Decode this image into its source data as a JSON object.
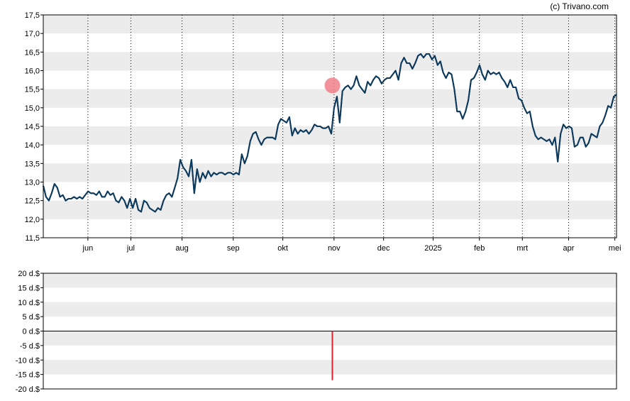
{
  "copyright": "(c) Trivano.com",
  "colors": {
    "band": "#ececec",
    "price_line": "#0d3a5c",
    "marker": "#f07f89",
    "bar": "#e0202e",
    "frame": "#000000",
    "grid": "#000000"
  },
  "chart_data": [
    {
      "type": "line",
      "title": "",
      "xlabel": "",
      "ylabel": "",
      "ylim": [
        11.5,
        17.5
      ],
      "y_ticks": [
        "11,5",
        "12,0",
        "12,5",
        "13,0",
        "13,5",
        "14,0",
        "14,5",
        "15,0",
        "15,5",
        "16,0",
        "16,5",
        "17,0",
        "17,5"
      ],
      "y_tick_values": [
        11.5,
        12.0,
        12.5,
        13.0,
        13.5,
        14.0,
        14.5,
        15.0,
        15.5,
        16.0,
        16.5,
        17.0,
        17.5
      ],
      "x_range_days": [
        0,
        347
      ],
      "x_ticks": [
        {
          "label": "jun",
          "day": 27
        },
        {
          "label": "jul",
          "day": 53
        },
        {
          "label": "aug",
          "day": 84
        },
        {
          "label": "sep",
          "day": 115
        },
        {
          "label": "okt",
          "day": 145
        },
        {
          "label": "nov",
          "day": 176
        },
        {
          "label": "dec",
          "day": 206
        },
        {
          "label": "2025",
          "day": 236
        },
        {
          "label": "feb",
          "day": 264
        },
        {
          "label": "mrt",
          "day": 290
        },
        {
          "label": "apr",
          "day": 318
        },
        {
          "label": "mei",
          "day": 346
        }
      ],
      "grid": "vertical dotted at month starts, alternating horizontal bands",
      "series": [
        {
          "points": [
            [
              0,
              12.9
            ],
            [
              1,
              12.6
            ],
            [
              2,
              12.5
            ],
            [
              3,
              12.7
            ],
            [
              4,
              12.95
            ],
            [
              5,
              12.85
            ],
            [
              6,
              12.6
            ],
            [
              7,
              12.65
            ],
            [
              8,
              12.5
            ],
            [
              9,
              12.55
            ],
            [
              10,
              12.55
            ],
            [
              11,
              12.6
            ],
            [
              12,
              12.55
            ],
            [
              13,
              12.6
            ],
            [
              14,
              12.55
            ],
            [
              15,
              12.65
            ],
            [
              16,
              12.75
            ],
            [
              17,
              12.7
            ],
            [
              18,
              12.7
            ],
            [
              19,
              12.65
            ],
            [
              20,
              12.75
            ],
            [
              21,
              12.6
            ],
            [
              22,
              12.6
            ],
            [
              23,
              12.75
            ],
            [
              24,
              12.65
            ],
            [
              25,
              12.7
            ],
            [
              26,
              12.5
            ],
            [
              27,
              12.45
            ],
            [
              28,
              12.6
            ],
            [
              29,
              12.5
            ],
            [
              30,
              12.3
            ],
            [
              31,
              12.55
            ],
            [
              32,
              12.3
            ],
            [
              33,
              12.55
            ],
            [
              34,
              12.25
            ],
            [
              35,
              12.2
            ],
            [
              36,
              12.5
            ],
            [
              37,
              12.45
            ],
            [
              38,
              12.3
            ],
            [
              39,
              12.25
            ],
            [
              40,
              12.2
            ],
            [
              41,
              12.3
            ],
            [
              42,
              12.25
            ],
            [
              43,
              12.5
            ],
            [
              44,
              12.65
            ],
            [
              45,
              12.7
            ],
            [
              46,
              12.6
            ],
            [
              47,
              12.85
            ],
            [
              48,
              13.1
            ],
            [
              49,
              13.6
            ],
            [
              50,
              13.4
            ],
            [
              51,
              13.3
            ],
            [
              52,
              13.15
            ],
            [
              53,
              13.6
            ],
            [
              54,
              12.7
            ],
            [
              55,
              13.35
            ],
            [
              56,
              13.0
            ],
            [
              57,
              13.25
            ],
            [
              58,
              13.1
            ],
            [
              59,
              13.3
            ],
            [
              60,
              13.15
            ],
            [
              61,
              13.25
            ],
            [
              62,
              13.2
            ],
            [
              63,
              13.25
            ],
            [
              64,
              13.25
            ],
            [
              65,
              13.2
            ],
            [
              66,
              13.25
            ],
            [
              67,
              13.25
            ],
            [
              68,
              13.2
            ],
            [
              69,
              13.25
            ],
            [
              70,
              13.2
            ],
            [
              71,
              13.75
            ],
            [
              72,
              13.5
            ],
            [
              73,
              13.7
            ],
            [
              74,
              14.1
            ],
            [
              75,
              14.3
            ],
            [
              76,
              14.35
            ],
            [
              77,
              14.15
            ],
            [
              78,
              14.0
            ],
            [
              79,
              14.15
            ],
            [
              80,
              14.2
            ],
            [
              81,
              14.2
            ],
            [
              82,
              14.2
            ],
            [
              83,
              14.15
            ],
            [
              84,
              14.55
            ],
            [
              85,
              14.7
            ],
            [
              86,
              14.65
            ],
            [
              87,
              14.6
            ],
            [
              88,
              14.75
            ],
            [
              89,
              14.25
            ],
            [
              90,
              14.45
            ],
            [
              91,
              14.3
            ],
            [
              92,
              14.4
            ],
            [
              93,
              14.35
            ],
            [
              94,
              14.4
            ],
            [
              95,
              14.3
            ],
            [
              96,
              14.4
            ],
            [
              97,
              14.55
            ],
            [
              98,
              14.5
            ],
            [
              99,
              14.5
            ],
            [
              100,
              14.45
            ],
            [
              101,
              14.45
            ],
            [
              102,
              14.5
            ],
            [
              103,
              14.3
            ],
            [
              104,
              15.0
            ],
            [
              105,
              15.3
            ],
            [
              106,
              14.6
            ],
            [
              107,
              15.45
            ],
            [
              108,
              15.55
            ],
            [
              109,
              15.6
            ],
            [
              110,
              15.5
            ],
            [
              111,
              15.6
            ],
            [
              112,
              15.85
            ],
            [
              113,
              15.6
            ],
            [
              114,
              15.5
            ],
            [
              115,
              15.4
            ],
            [
              116,
              15.7
            ],
            [
              117,
              15.6
            ],
            [
              118,
              15.75
            ],
            [
              119,
              15.85
            ],
            [
              120,
              15.8
            ],
            [
              121,
              15.65
            ],
            [
              122,
              15.75
            ],
            [
              123,
              15.8
            ],
            [
              124,
              15.8
            ],
            [
              125,
              15.9
            ],
            [
              126,
              16.0
            ],
            [
              127,
              15.75
            ],
            [
              128,
              16.2
            ],
            [
              129,
              16.35
            ],
            [
              130,
              16.2
            ],
            [
              131,
              16.2
            ],
            [
              132,
              16.05
            ],
            [
              133,
              16.2
            ],
            [
              134,
              16.4
            ],
            [
              135,
              16.45
            ],
            [
              136,
              16.35
            ],
            [
              137,
              16.45
            ],
            [
              138,
              16.45
            ],
            [
              139,
              16.3
            ],
            [
              140,
              16.4
            ],
            [
              141,
              16.15
            ],
            [
              142,
              16.25
            ],
            [
              143,
              15.95
            ],
            [
              144,
              15.8
            ],
            [
              145,
              15.95
            ],
            [
              146,
              15.9
            ],
            [
              147,
              15.5
            ],
            [
              148,
              14.9
            ],
            [
              149,
              14.9
            ],
            [
              150,
              14.7
            ],
            [
              151,
              14.9
            ],
            [
              152,
              15.2
            ],
            [
              153,
              15.75
            ],
            [
              154,
              15.8
            ],
            [
              155,
              15.95
            ],
            [
              156,
              16.15
            ],
            [
              157,
              15.9
            ],
            [
              158,
              15.75
            ],
            [
              159,
              16.0
            ],
            [
              160,
              15.9
            ],
            [
              161,
              15.95
            ],
            [
              162,
              15.9
            ],
            [
              163,
              15.95
            ],
            [
              164,
              15.8
            ],
            [
              165,
              15.7
            ],
            [
              166,
              15.55
            ],
            [
              167,
              15.75
            ],
            [
              168,
              15.55
            ],
            [
              169,
              15.55
            ],
            [
              170,
              15.25
            ],
            [
              171,
              15.2
            ],
            [
              172,
              15.0
            ],
            [
              173,
              14.85
            ],
            [
              174,
              14.9
            ],
            [
              175,
              14.5
            ],
            [
              176,
              14.25
            ],
            [
              177,
              14.15
            ],
            [
              178,
              14.2
            ],
            [
              179,
              14.15
            ],
            [
              180,
              14.1
            ],
            [
              181,
              14.15
            ],
            [
              182,
              14.0
            ],
            [
              183,
              14.2
            ],
            [
              184,
              13.55
            ],
            [
              185,
              14.3
            ],
            [
              186,
              14.55
            ],
            [
              187,
              14.45
            ],
            [
              188,
              14.5
            ],
            [
              189,
              14.45
            ],
            [
              190,
              13.95
            ],
            [
              191,
              14.0
            ],
            [
              192,
              14.2
            ],
            [
              193,
              14.2
            ],
            [
              194,
              13.95
            ],
            [
              195,
              14.05
            ],
            [
              196,
              14.3
            ],
            [
              197,
              14.25
            ],
            [
              198,
              14.2
            ],
            [
              199,
              14.5
            ],
            [
              200,
              14.6
            ],
            [
              201,
              14.8
            ],
            [
              202,
              15.05
            ],
            [
              203,
              15.0
            ],
            [
              204,
              15.3
            ],
            [
              205,
              15.35
            ]
          ],
          "x_scale": 1.6927
        }
      ],
      "markers": [
        {
          "type": "circle",
          "day": 175,
          "value": 15.6
        }
      ]
    },
    {
      "type": "bar",
      "title": "",
      "xlabel": "",
      "ylabel": "",
      "ylim": [
        -20,
        20
      ],
      "y_ticks": [
        "20 d.$",
        "15 d.$",
        "10 d.$",
        "5 d.$",
        "0 d.$",
        "-5 d.$",
        "-10 d.$",
        "-15 d.$",
        "-20 d.$"
      ],
      "y_tick_values": [
        20,
        15,
        10,
        5,
        0,
        -5,
        -10,
        -15,
        -20
      ],
      "grid": "alternating horizontal bands, solid zero line",
      "bars": [
        {
          "day": 175,
          "value": -17
        }
      ]
    }
  ]
}
